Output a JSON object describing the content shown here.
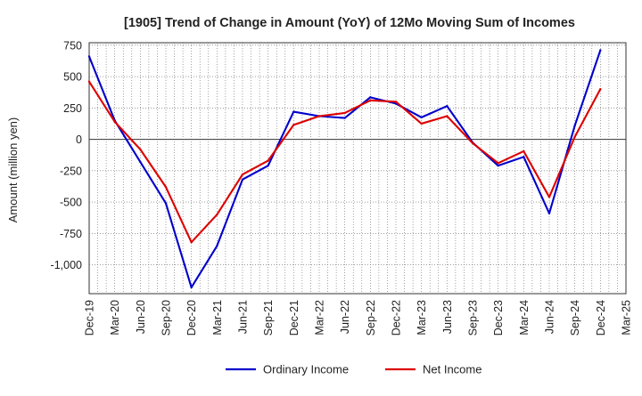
{
  "chart_data": {
    "type": "line",
    "title": "[1905]  Trend of Change in Amount (YoY) of 12Mo Moving Sum of Incomes",
    "ylabel": "Amount (million yen)",
    "xlabel": "",
    "ylim": [
      -1230,
      770
    ],
    "y_ticks": [
      750,
      500,
      250,
      0,
      -250,
      -500,
      -750,
      -1000
    ],
    "y_tick_labels": [
      "750",
      "500",
      "250",
      "0",
      "-250",
      "-500",
      "-750",
      "-1,000"
    ],
    "x": [
      "Dec-19",
      "Mar-20",
      "Jun-20",
      "Sep-20",
      "Dec-20",
      "Mar-21",
      "Jun-21",
      "Sep-21",
      "Dec-21",
      "Mar-22",
      "Jun-22",
      "Sep-22",
      "Dec-22",
      "Mar-23",
      "Jun-23",
      "Sep-23",
      "Dec-23",
      "Mar-24",
      "Jun-24",
      "Sep-24",
      "Dec-24",
      "Mar-25"
    ],
    "grid": true,
    "legend_position": "bottom",
    "series": [
      {
        "name": "Ordinary Income",
        "color": "#0000cc",
        "values": [
          660,
          150,
          -180,
          -510,
          -1180,
          -850,
          -320,
          -210,
          220,
          185,
          170,
          335,
          285,
          175,
          265,
          -25,
          -210,
          -140,
          -590,
          110,
          710,
          null
        ]
      },
      {
        "name": "Net Income",
        "color": "#dd0000",
        "values": [
          460,
          140,
          -80,
          -380,
          -820,
          -600,
          -280,
          -170,
          115,
          185,
          210,
          310,
          300,
          125,
          185,
          -30,
          -190,
          -95,
          -460,
          20,
          400,
          null
        ]
      }
    ]
  }
}
